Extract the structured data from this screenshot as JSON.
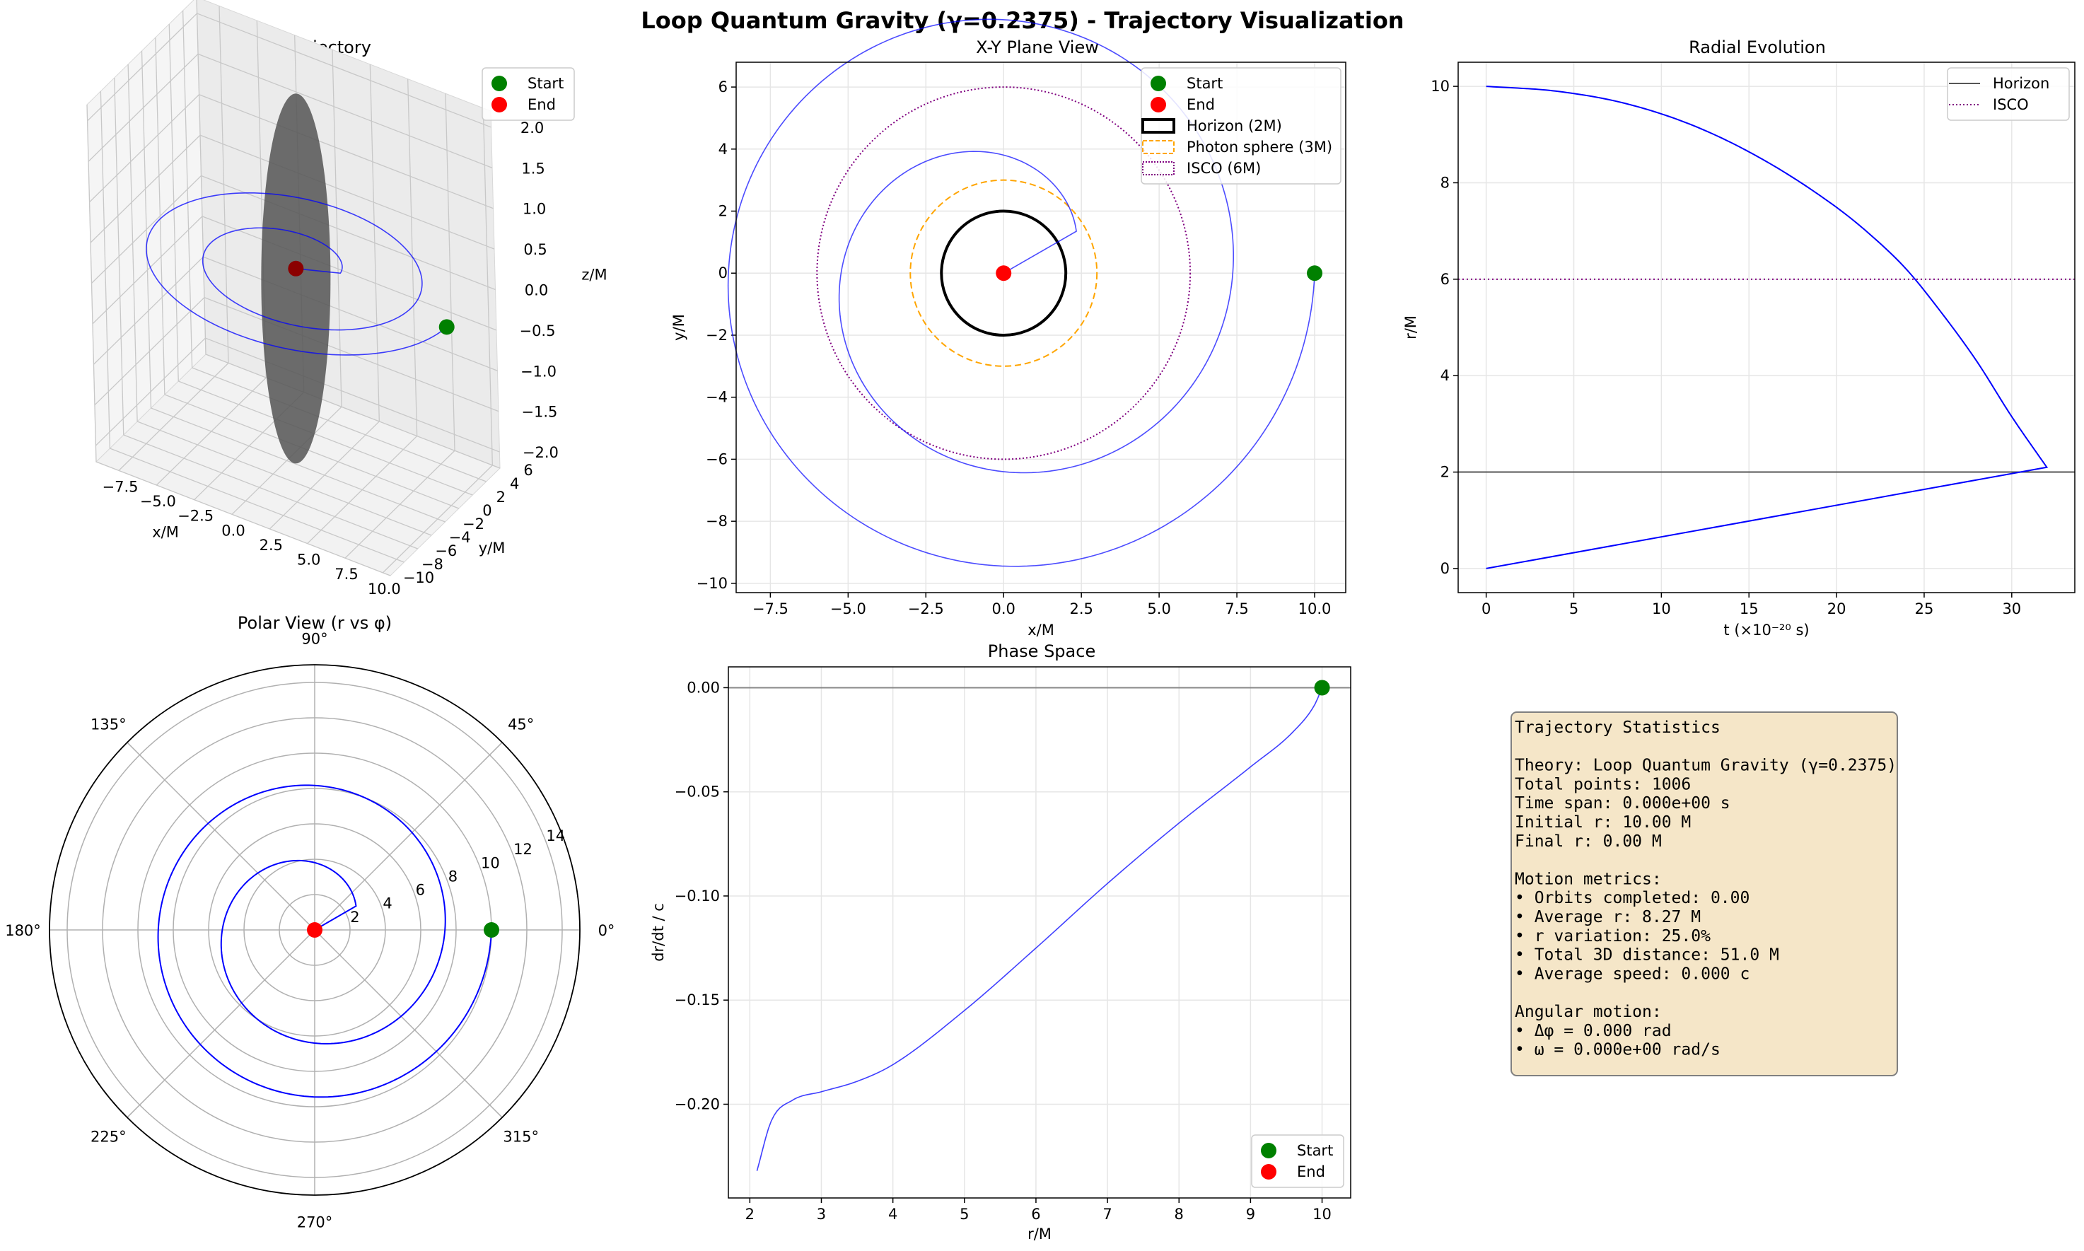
{
  "figure": {
    "title": "Loop Quantum Gravity (γ=0.2375) - Trajectory Visualization"
  },
  "colors": {
    "trajectory": "#0000ff",
    "start": "#008000",
    "end": "#ff0000",
    "horizon": "#000000",
    "photon_sphere": "#ffa500",
    "isco": "#800080",
    "stats_box_fill": "#f5e6c8"
  },
  "chart_data": [
    {
      "id": "traj3d",
      "type": "line",
      "projection": "3d",
      "title": "3D Trajectory",
      "xlabel": "x/M",
      "ylabel": "y/M",
      "zlabel": "z/M",
      "xlim": [
        -9,
        10.5
      ],
      "ylim": [
        -10,
        6
      ],
      "zlim": [
        -2.2,
        2.2
      ],
      "xticks": [
        "−7.5",
        "−5.0",
        "−2.5",
        "0.0",
        "2.5",
        "5.0",
        "7.5",
        "10.0"
      ],
      "yticks": [
        "−10",
        "−8",
        "−6",
        "−4",
        "−2",
        "0",
        "2",
        "4",
        "6"
      ],
      "zticks": [
        "2.0",
        "1.5",
        "1.0",
        "0.5",
        "0.0",
        "−0.5",
        "−1.0",
        "−1.5",
        "−2.0"
      ],
      "legend": [
        "Start",
        "End"
      ],
      "legend_position": "top-right",
      "grid": true
    },
    {
      "id": "xy",
      "type": "line",
      "title": "X-Y Plane View",
      "xlabel": "x/M",
      "ylabel": "y/M",
      "xlim": [
        -8.6,
        11.0
      ],
      "ylim": [
        -10.3,
        6.8
      ],
      "xticks": [
        -7.5,
        -5.0,
        -2.5,
        0.0,
        2.5,
        5.0,
        7.5,
        10.0
      ],
      "xtick_labels": [
        "−7.5",
        "−5.0",
        "−2.5",
        "0.0",
        "2.5",
        "5.0",
        "7.5",
        "10.0"
      ],
      "yticks": [
        -10,
        -8,
        -6,
        -4,
        -2,
        0,
        2,
        4,
        6
      ],
      "ytick_labels": [
        "−10",
        "−8",
        "−6",
        "−4",
        "−2",
        "0",
        "2",
        "4",
        "6"
      ],
      "circles": [
        {
          "name": "Horizon (2M)",
          "r": 2
        },
        {
          "name": "Photon sphere (3M)",
          "r": 3
        },
        {
          "name": "ISCO (6M)",
          "r": 6
        }
      ],
      "legend": [
        "Start",
        "End",
        "Horizon (2M)",
        "Photon sphere (3M)",
        "ISCO (6M)"
      ],
      "legend_position": "top-right",
      "start": [
        10,
        0
      ],
      "end": [
        0,
        0
      ],
      "grid": true
    },
    {
      "id": "radial",
      "type": "line",
      "title": "Radial Evolution",
      "xlabel": "t (×10⁻²⁰ s)",
      "ylabel": "r/M",
      "xlim": [
        -1.6,
        33.6
      ],
      "ylim": [
        -0.5,
        10.5
      ],
      "xticks": [
        0,
        5,
        10,
        15,
        20,
        25,
        30
      ],
      "xtick_labels": [
        "0",
        "5",
        "10",
        "15",
        "20",
        "25",
        "30"
      ],
      "yticks": [
        0,
        2,
        4,
        6,
        8,
        10
      ],
      "ytick_labels": [
        "0",
        "2",
        "4",
        "6",
        "8",
        "10"
      ],
      "hlines": [
        {
          "name": "Horizon",
          "y": 2
        },
        {
          "name": "ISCO",
          "y": 6
        }
      ],
      "series": [
        {
          "x": [
            0,
            4,
            8,
            12,
            16,
            20,
            22,
            24,
            26,
            28,
            30,
            32
          ],
          "y": [
            10.0,
            9.9,
            9.64,
            9.16,
            8.44,
            7.49,
            6.9,
            6.2,
            5.3,
            4.3,
            3.15,
            2.1
          ]
        },
        {
          "x": [
            32,
            0
          ],
          "y": [
            2.1,
            0.0
          ]
        }
      ],
      "legend": [
        "Horizon",
        "ISCO"
      ],
      "legend_position": "top-right",
      "grid": true
    },
    {
      "id": "polar",
      "type": "line",
      "projection": "polar",
      "title": "Polar View (r vs φ)",
      "theta_labels": [
        "0°",
        "45°",
        "90°",
        "135°",
        "180°",
        "225°",
        "270°",
        "315°"
      ],
      "r_ticks": [
        2,
        4,
        6,
        8,
        10,
        12,
        14
      ],
      "r_tick_labels": [
        "2",
        "4",
        "6",
        "8",
        "10",
        "12",
        "14"
      ],
      "rmax": 15,
      "start": {
        "r": 10,
        "theta_deg": 0
      },
      "end": {
        "r": 0,
        "theta_deg": 0
      },
      "grid": true
    },
    {
      "id": "phase",
      "type": "line",
      "title": "Phase Space",
      "xlabel": "r/M",
      "ylabel": "dr/dt / c",
      "xlim": [
        1.7,
        10.4
      ],
      "ylim": [
        -0.245,
        0.01
      ],
      "xticks": [
        2,
        3,
        4,
        5,
        6,
        7,
        8,
        9,
        10
      ],
      "xtick_labels": [
        "2",
        "3",
        "4",
        "5",
        "6",
        "7",
        "8",
        "9",
        "10"
      ],
      "yticks": [
        0.0,
        -0.05,
        -0.1,
        -0.15,
        -0.2
      ],
      "ytick_labels": [
        "0.00",
        "−0.05",
        "−0.10",
        "−0.15",
        "−0.20"
      ],
      "hline": 0,
      "series": [
        {
          "x": [
            2.1,
            2.3,
            2.6,
            3.0,
            3.5,
            4.0,
            5.0,
            6.0,
            7.0,
            8.0,
            9.0,
            9.6,
            9.9,
            10.0
          ],
          "y": [
            -0.232,
            -0.208,
            -0.198,
            -0.194,
            -0.189,
            -0.181,
            -0.155,
            -0.125,
            -0.094,
            -0.065,
            -0.038,
            -0.021,
            -0.008,
            0.0
          ]
        }
      ],
      "start": [
        10,
        0
      ],
      "legend": [
        "Start",
        "End"
      ],
      "legend_position": "bottom-right",
      "grid": true
    }
  ],
  "stats": {
    "lines": [
      "Trajectory Statistics",
      "",
      "Theory: Loop Quantum Gravity (γ=0.2375)",
      "Total points: 1006",
      "Time span: 0.000e+00 s",
      "Initial r: 10.00 M",
      "Final r: 0.00 M",
      "",
      "Motion metrics:",
      "• Orbits completed: 0.00",
      "• Average r: 8.27 M",
      "• r variation: 25.0%",
      "• Total 3D distance: 51.0 M",
      "• Average speed: 0.000 c",
      "",
      "Angular motion:",
      "• Δφ = 0.000 rad",
      "• ω = 0.000e+00 rad/s"
    ]
  }
}
